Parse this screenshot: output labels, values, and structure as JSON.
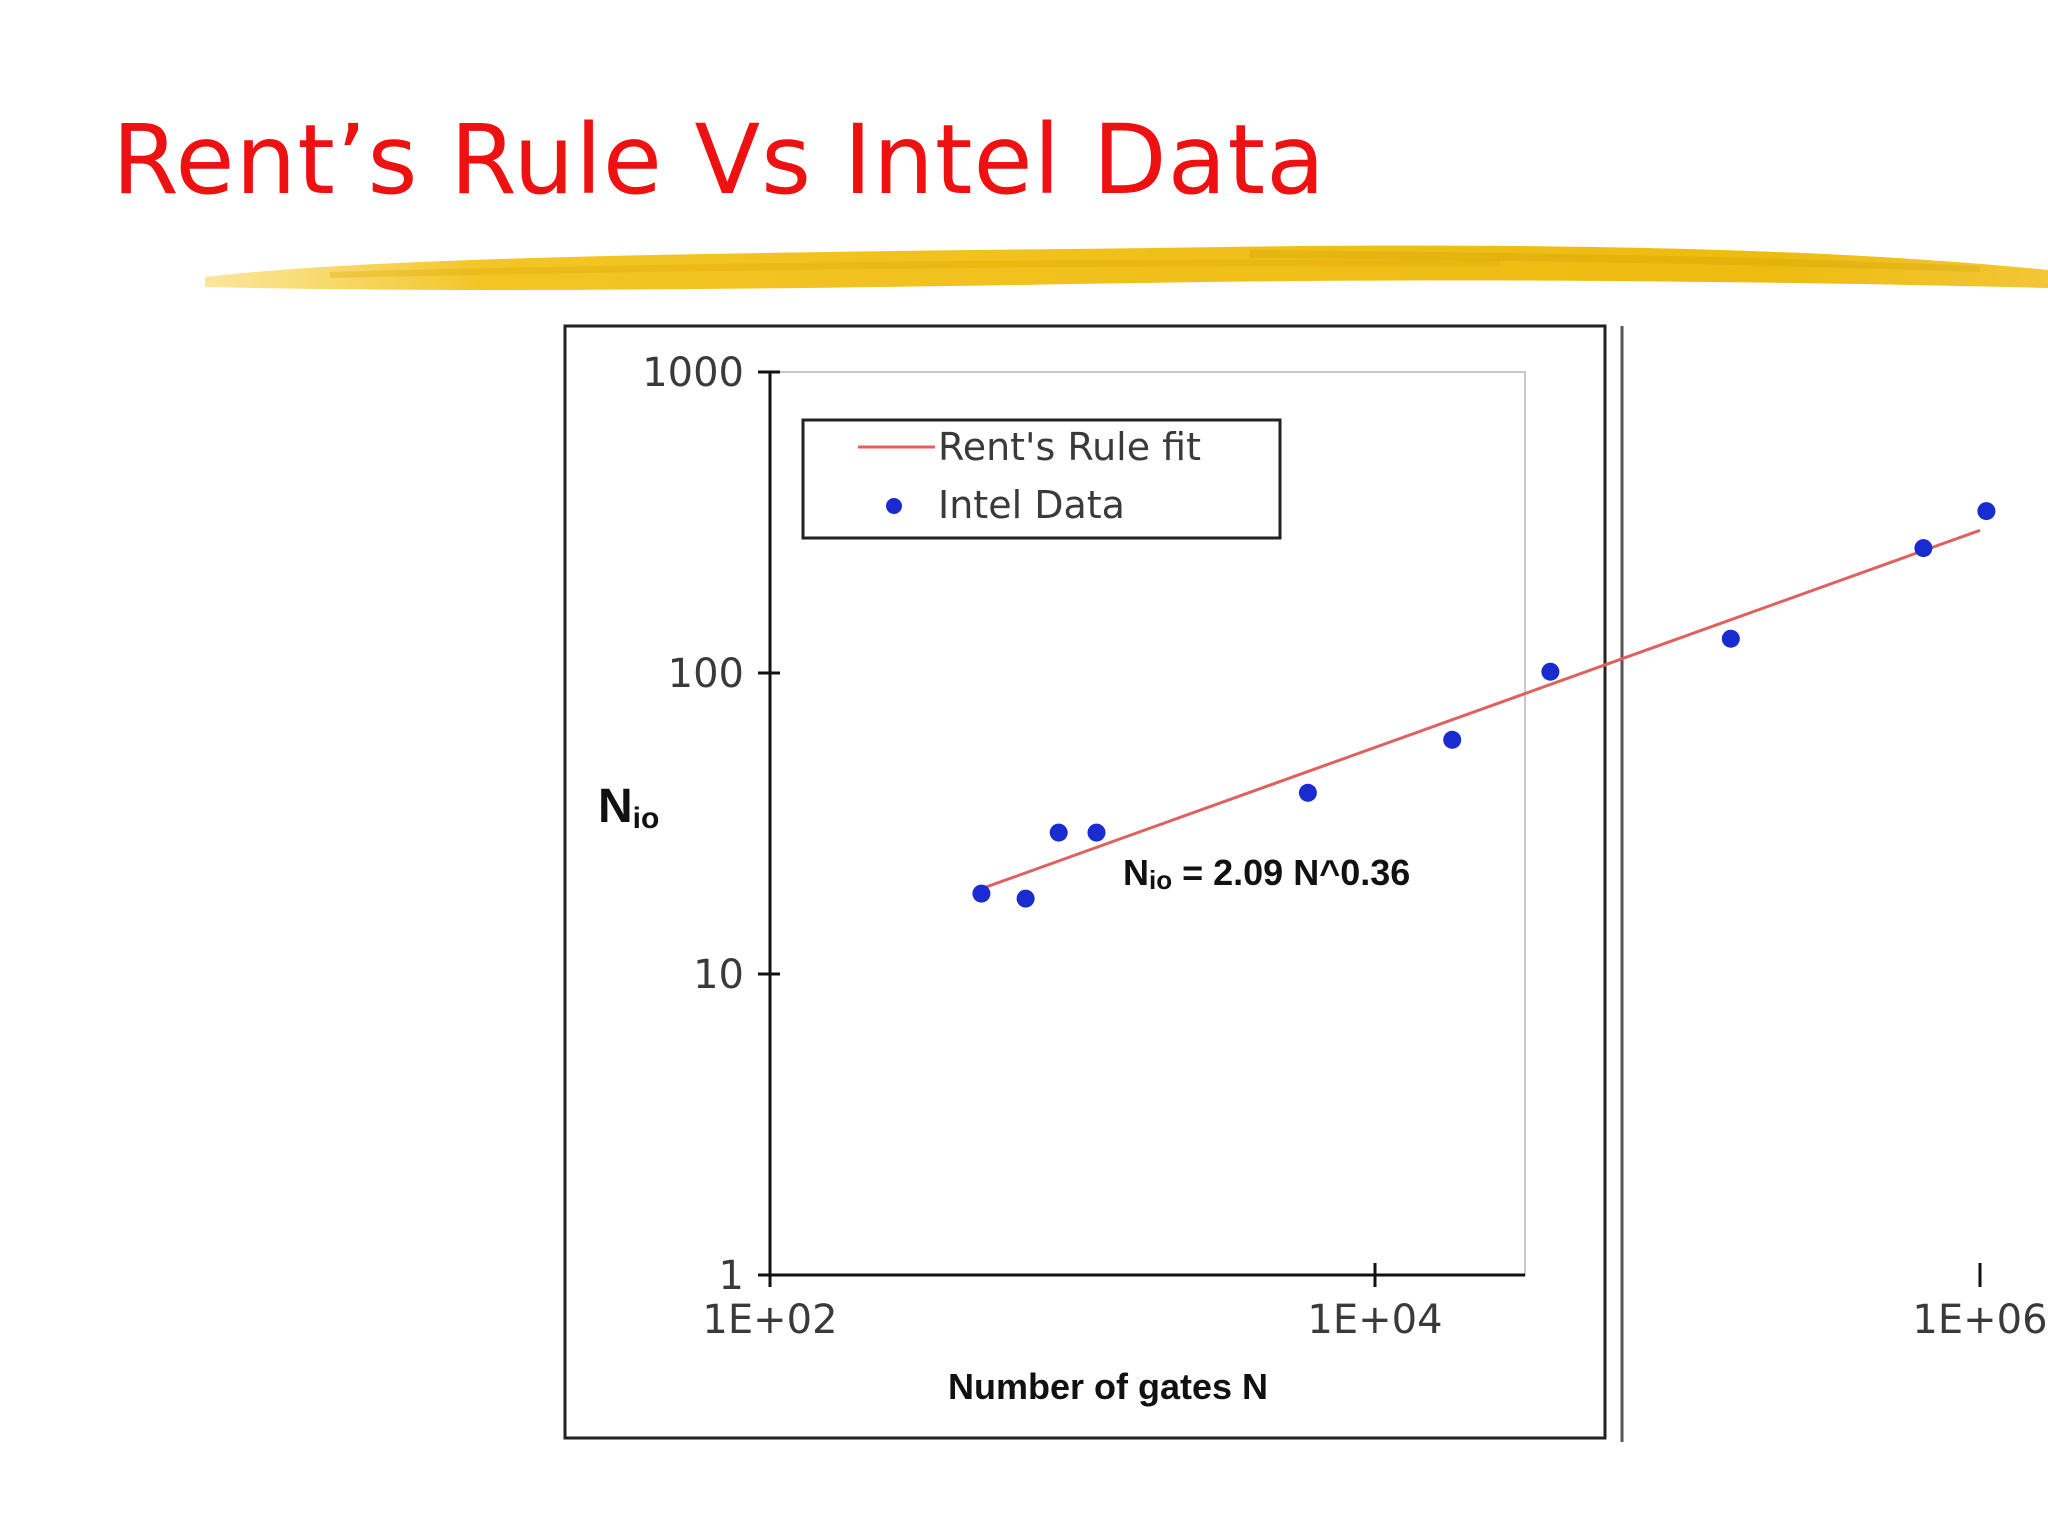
{
  "slide": {
    "title": "Rent’s Rule Vs Intel Data"
  },
  "colors": {
    "title": "#ee1111",
    "brush": "#f2c21a",
    "fit_line": "#e06060",
    "data_points": "#1a2bd0",
    "axis": "#111111"
  },
  "chart_data": {
    "type": "scatter",
    "title": "",
    "xlabel": "Number of gates N",
    "ylabel": {
      "main": "N",
      "sub": "io"
    },
    "x_scale": "log",
    "y_scale": "log",
    "xlim": [
      100,
      10000000
    ],
    "ylim": [
      1,
      1000
    ],
    "x_ticks": [
      100,
      10000,
      1000000
    ],
    "x_tick_labels": [
      "1E+02",
      "1E+04",
      "1E+06"
    ],
    "y_ticks": [
      1,
      10,
      100,
      1000
    ],
    "y_tick_labels": [
      "1",
      "10",
      "100",
      "1000"
    ],
    "grid": false,
    "legend_position": "top-left",
    "annotation": {
      "main": "N",
      "sub": "io",
      "rest": " = 2.09 N^0.36"
    },
    "series": [
      {
        "name": "Rent's Rule fit",
        "kind": "line",
        "x": [
          500,
          1000000
        ],
        "y": [
          19.2,
          298
        ]
      },
      {
        "name": "Intel Data",
        "kind": "scatter",
        "x": [
          500,
          700,
          900,
          1200,
          6000,
          18000,
          38000,
          150000,
          650000,
          1050000
        ],
        "y": [
          18.5,
          17.8,
          29.5,
          29.5,
          40,
          60,
          101,
          130,
          260,
          345
        ]
      }
    ]
  }
}
